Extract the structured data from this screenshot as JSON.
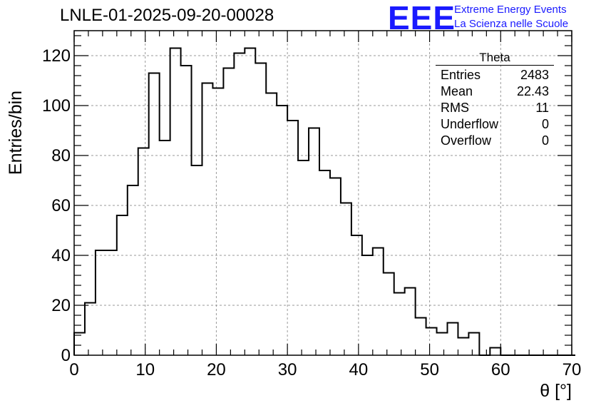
{
  "title": "LNLE-01-2025-09-20-00028",
  "logo": {
    "mark": "EEE",
    "line1": "Extreme Energy Events",
    "line2": "La Scienza nelle Scuole",
    "color": "#1a1aff"
  },
  "stats": {
    "title": "Theta",
    "rows": [
      {
        "label": "Entries",
        "value": "2483"
      },
      {
        "label": "Mean",
        "value": "22.43"
      },
      {
        "label": "RMS",
        "value": "11"
      },
      {
        "label": "Underflow",
        "value": "0"
      },
      {
        "label": "Overflow",
        "value": "0"
      }
    ]
  },
  "chart_data": {
    "type": "bar",
    "histogram": true,
    "xlabel": "θ [°]",
    "ylabel": "Entries/bin",
    "xlim": [
      0,
      70
    ],
    "ylim": [
      0,
      130
    ],
    "xticks": [
      0,
      10,
      20,
      30,
      40,
      50,
      60,
      70
    ],
    "yticks": [
      0,
      20,
      40,
      60,
      80,
      100,
      120
    ],
    "grid": true,
    "bin_width": 1.5,
    "bin_edges_start": 0,
    "values": [
      9,
      21,
      42,
      42,
      56,
      68,
      83,
      113,
      86,
      123,
      116,
      76,
      109,
      107,
      115,
      121,
      123,
      117,
      105,
      100,
      94,
      78,
      91,
      74,
      71,
      61,
      48,
      40,
      43,
      33,
      25,
      27,
      15,
      11,
      9,
      13,
      7,
      9,
      0,
      3,
      0,
      0,
      0,
      0,
      0,
      0,
      0
    ],
    "line_color": "#000000",
    "grid_color": "#999999"
  }
}
